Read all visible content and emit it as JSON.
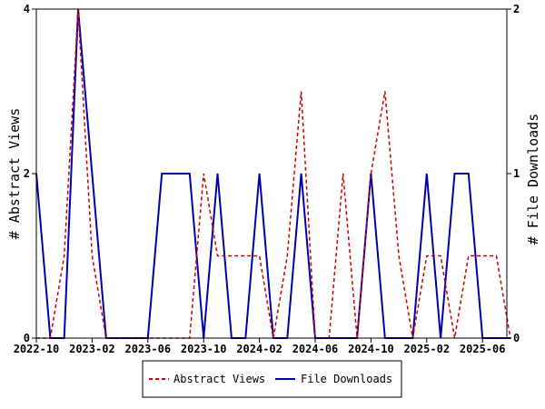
{
  "chart_data": {
    "type": "line",
    "x_tick_labels": [
      "2022-10",
      "2023-02",
      "2023-06",
      "2023-10",
      "2024-02",
      "2024-06",
      "2024-10",
      "2025-02",
      "2025-06"
    ],
    "ylabel_left": "# Abstract Views",
    "ylabel_right": "# File Downloads",
    "ylim_left": [
      0,
      4
    ],
    "ylim_right": [
      0,
      2
    ],
    "yticks_left": [
      "0",
      "2",
      "4"
    ],
    "yticks_right": [
      "0",
      "1",
      "2"
    ],
    "legend_position": "bottom-center",
    "grid": false,
    "x": [
      "2022-10",
      "2022-11",
      "2022-12",
      "2023-01",
      "2023-02",
      "2023-03",
      "2023-04",
      "2023-05",
      "2023-06",
      "2023-07",
      "2023-08",
      "2023-09",
      "2023-10",
      "2023-11",
      "2023-12",
      "2024-01",
      "2024-02",
      "2024-03",
      "2024-04",
      "2024-05",
      "2024-06",
      "2024-07",
      "2024-08",
      "2024-09",
      "2024-10",
      "2024-11",
      "2024-12",
      "2025-01",
      "2025-02",
      "2025-03",
      "2025-04",
      "2025-05",
      "2025-06",
      "2025-07",
      "2025-08"
    ],
    "series": [
      {
        "name": "Abstract Views",
        "axis": "left",
        "color": "#cc0000",
        "dash": true,
        "values": [
          0,
          0,
          1,
          4,
          1,
          0,
          0,
          0,
          0,
          0,
          0,
          0,
          2,
          1,
          1,
          1,
          1,
          0,
          1,
          3,
          0,
          0,
          2,
          0,
          2,
          3,
          1,
          0,
          1,
          1,
          0,
          1,
          1,
          1,
          0
        ]
      },
      {
        "name": "File Downloads",
        "axis": "right",
        "color": "#0000aa",
        "dash": false,
        "values": [
          1,
          0,
          0,
          2,
          1,
          0,
          0,
          0,
          0,
          1,
          1,
          1,
          0,
          1,
          0,
          0,
          1,
          0,
          0,
          1,
          0,
          0,
          0,
          0,
          1,
          0,
          0,
          0,
          1,
          0,
          1,
          1,
          0,
          0,
          0
        ]
      }
    ]
  }
}
